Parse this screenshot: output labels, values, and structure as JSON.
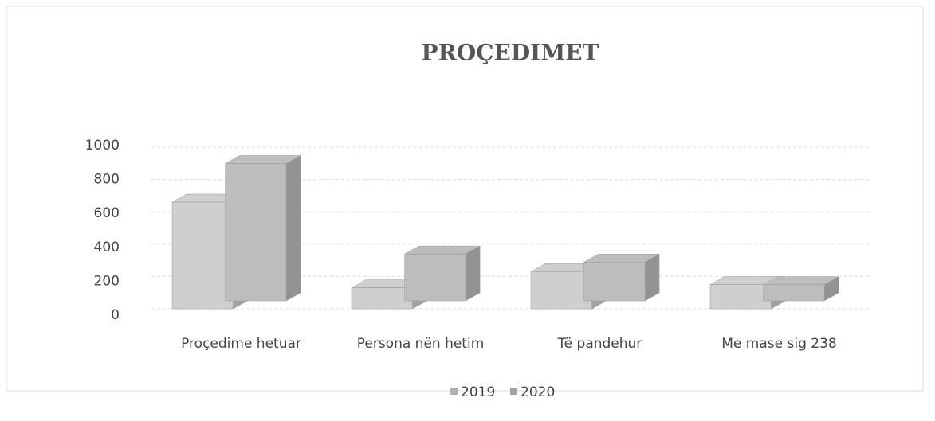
{
  "chart_data": {
    "type": "bar3d",
    "title": "PROÇEDIMET",
    "categories": [
      "Proçedime hetuar",
      "Persona nën hetim",
      "Të pandehur",
      "Me mase sig 238"
    ],
    "series": [
      {
        "name": "2019",
        "color": "#cfcfcf",
        "values": [
          660,
          130,
          230,
          150
        ]
      },
      {
        "name": "2020",
        "color": "#bdbdbd",
        "values": [
          850,
          290,
          240,
          100
        ]
      }
    ],
    "ylim": [
      0,
      1000
    ],
    "yticks": [
      0,
      200,
      400,
      600,
      800,
      1000
    ],
    "grid": true,
    "legend": "bottom"
  }
}
